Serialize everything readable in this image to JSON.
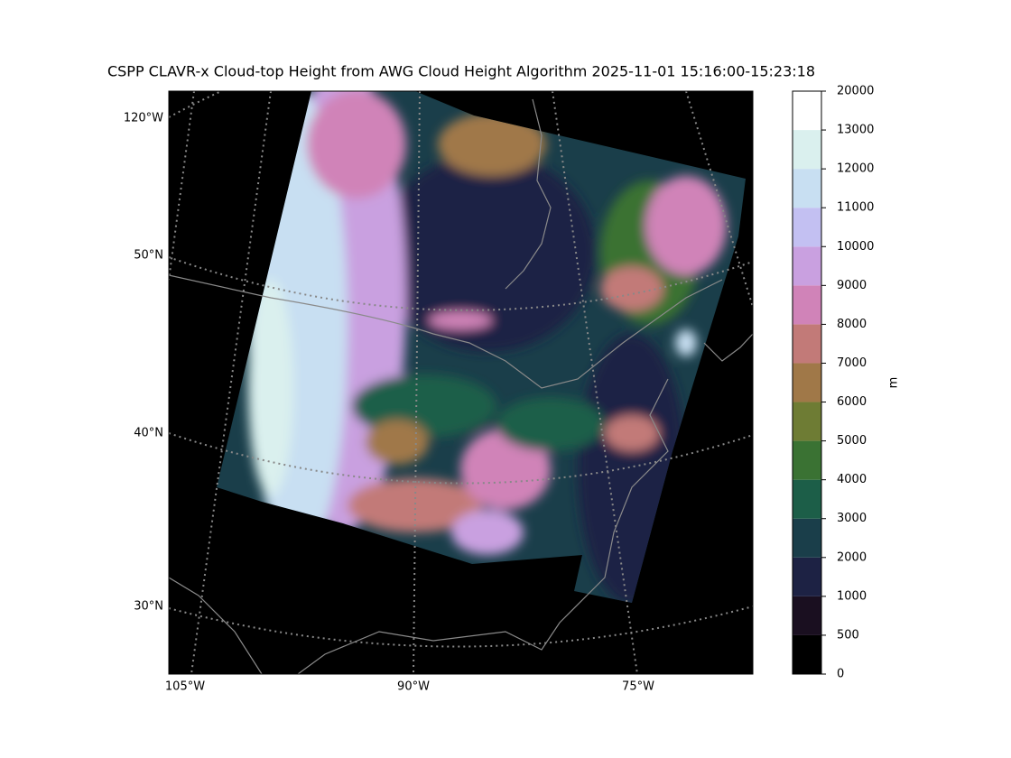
{
  "title": "CSPP CLAVR-x Cloud-top Height from AWG Cloud Height Algorithm 2025-11-01 15:16:00-15:23:18",
  "map": {
    "labels": [
      "120°W",
      "50°N",
      "40°N",
      "30°N",
      "105°W",
      "90°W",
      "75°W"
    ]
  },
  "colorbar": {
    "label": "m",
    "boundaries": [
      0,
      500,
      1000,
      2000,
      3000,
      4000,
      5000,
      6000,
      7000,
      8000,
      9000,
      10000,
      11000,
      12000,
      13000,
      20000
    ],
    "colors": [
      "#000000",
      "#1a0f20",
      "#1d2244",
      "#1a3e4a",
      "#1c5e48",
      "#3a7233",
      "#6e7c34",
      "#a07848",
      "#c27a78",
      "#d083b8",
      "#c9a0e0",
      "#c3c0f2",
      "#c8dff2",
      "#daf0ee",
      "#ffffff"
    ]
  }
}
